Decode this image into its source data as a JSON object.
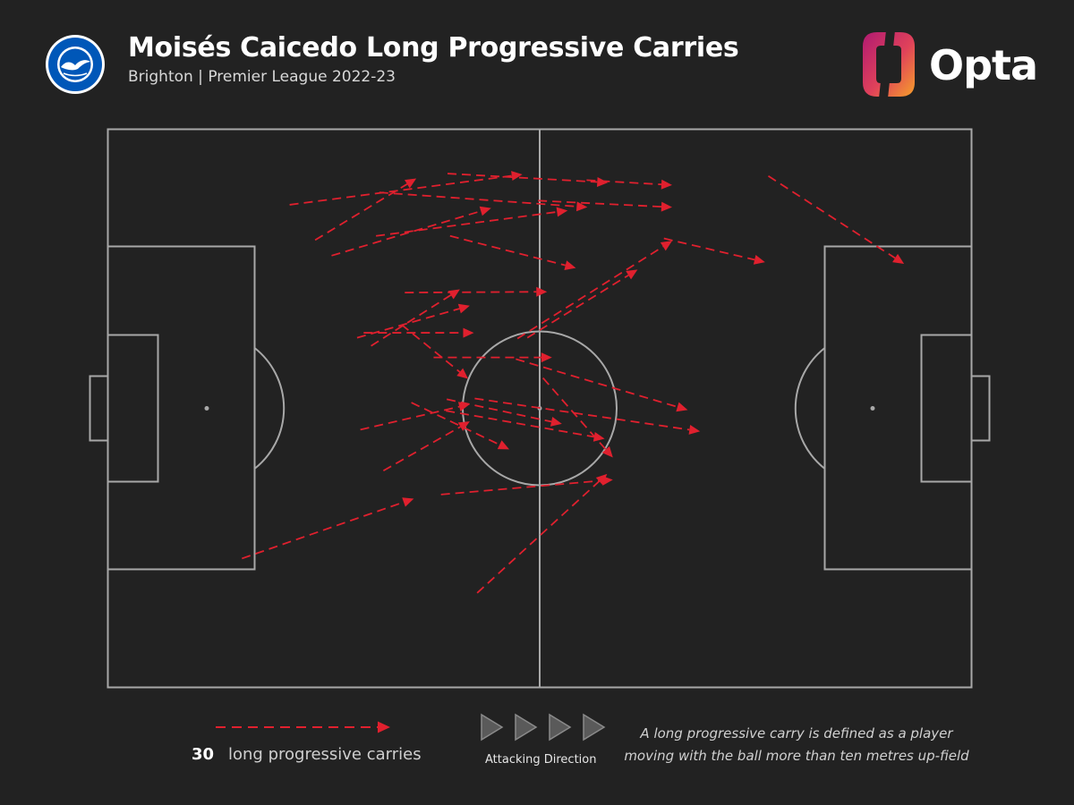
{
  "header": {
    "title": "Moisés Caicedo Long Progressive Carries",
    "subtitle": "Brighton | Premier League 2022-23",
    "crest_text_top": "BRIGHTON & HOVE",
    "crest_text_bottom": "ALBION",
    "brand": "Opta"
  },
  "colors": {
    "background": "#222222",
    "pitch_lines": "#a8a8a8",
    "carry": "#e0202e",
    "crest_blue": "#0057b8",
    "opta_grad_start": "#c21e6e",
    "opta_grad_end": "#f39a2a"
  },
  "chart_data": {
    "type": "carry-map",
    "pitch": {
      "length": 105,
      "width": 68,
      "attacking_direction": "left-to-right"
    },
    "carries": [
      [
        22.1,
        58.8,
        50.4,
        62.5
      ],
      [
        25.2,
        54.5,
        37.5,
        62.0
      ],
      [
        27.2,
        52.6,
        46.6,
        58.4
      ],
      [
        33.0,
        60.3,
        58.3,
        58.5
      ],
      [
        41.3,
        62.6,
        60.8,
        61.5
      ],
      [
        52.3,
        59.3,
        68.6,
        58.5
      ],
      [
        41.6,
        55.0,
        56.9,
        51.1
      ],
      [
        32.6,
        55.0,
        55.9,
        58.1
      ],
      [
        58.2,
        61.8,
        68.6,
        61.2
      ],
      [
        67.6,
        54.7,
        79.9,
        51.8
      ],
      [
        80.3,
        62.3,
        96.8,
        51.6
      ],
      [
        32.0,
        41.6,
        42.8,
        48.5
      ],
      [
        36.1,
        48.1,
        53.4,
        48.2
      ],
      [
        30.3,
        42.6,
        44.0,
        46.5
      ],
      [
        31.1,
        43.2,
        44.5,
        43.2
      ],
      [
        35.7,
        44.2,
        43.8,
        37.6
      ],
      [
        39.6,
        40.2,
        54.0,
        40.2
      ],
      [
        36.9,
        34.7,
        48.8,
        29.0
      ],
      [
        41.2,
        35.1,
        55.2,
        32.1
      ],
      [
        44.6,
        35.2,
        72.0,
        31.2
      ],
      [
        49.6,
        40.0,
        70.5,
        33.8
      ],
      [
        52.9,
        37.7,
        61.4,
        28.0
      ],
      [
        41.1,
        33.7,
        60.4,
        30.3
      ],
      [
        30.7,
        31.4,
        44.0,
        34.5
      ],
      [
        33.5,
        26.4,
        44.0,
        32.4
      ],
      [
        51.0,
        42.6,
        64.4,
        50.9
      ],
      [
        49.8,
        42.5,
        68.6,
        54.4
      ],
      [
        40.5,
        23.5,
        61.4,
        25.3
      ],
      [
        44.9,
        11.5,
        60.7,
        26.0
      ],
      [
        16.3,
        15.7,
        37.2,
        23.0
      ]
    ]
  },
  "legend": {
    "count": "30",
    "label": "long progressive carries",
    "direction_label": "Attacking Direction"
  },
  "definition": {
    "line1": "A long progressive carry is defined as a player",
    "line2": "moving with the ball more than ten metres up-field"
  }
}
